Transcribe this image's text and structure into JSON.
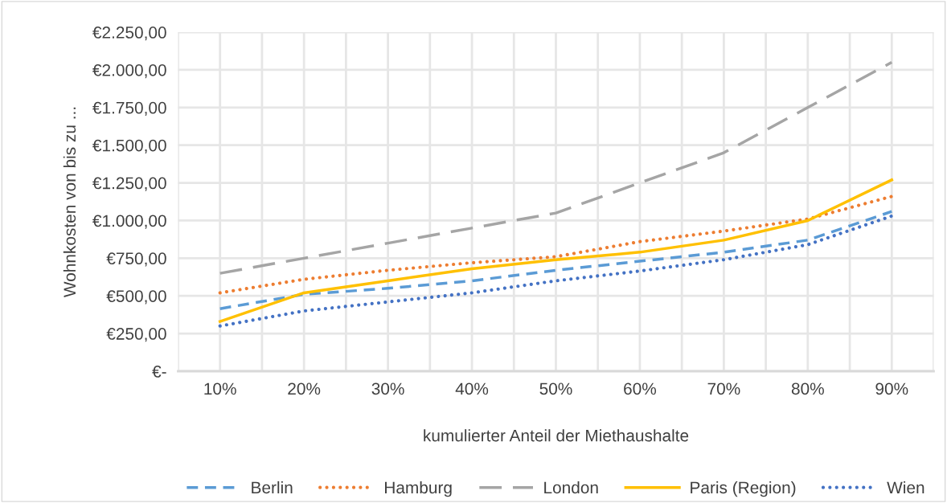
{
  "chart_data": {
    "type": "line",
    "xlabel": "kumulierter Anteil der Miethaushalte",
    "ylabel": "Wohnkosten von bis zu ...",
    "categories": [
      "10%",
      "20%",
      "30%",
      "40%",
      "50%",
      "60%",
      "70%",
      "80%",
      "90%"
    ],
    "series": [
      {
        "name": "Berlin",
        "color": "#5b9bd5",
        "line_style": "dashed",
        "values": [
          415,
          510,
          550,
          600,
          670,
          730,
          790,
          870,
          1060
        ]
      },
      {
        "name": "Hamburg",
        "color": "#ed7d31",
        "line_style": "dotted",
        "values": [
          520,
          610,
          670,
          720,
          760,
          860,
          930,
          1010,
          1160
        ]
      },
      {
        "name": "London",
        "color": "#a5a5a5",
        "line_style": "dashed",
        "values": [
          650,
          750,
          850,
          950,
          1050,
          1250,
          1450,
          1750,
          2050
        ]
      },
      {
        "name": "Paris (Region)",
        "color": "#ffc000",
        "line_style": "solid",
        "values": [
          330,
          520,
          600,
          680,
          740,
          790,
          870,
          1000,
          1270
        ]
      },
      {
        "name": "Wien",
        "color": "#4472c4",
        "line_style": "dotted",
        "values": [
          300,
          400,
          460,
          520,
          600,
          665,
          740,
          840,
          1030
        ]
      }
    ],
    "ylim": [
      0,
      2250
    ],
    "yticks": [
      {
        "value": 0,
        "label": "€-"
      },
      {
        "value": 250,
        "label": "€250,00"
      },
      {
        "value": 500,
        "label": "€500,00"
      },
      {
        "value": 750,
        "label": "€750,00"
      },
      {
        "value": 1000,
        "label": "€1.000,00"
      },
      {
        "value": 1250,
        "label": "€1.250,00"
      },
      {
        "value": 1500,
        "label": "€1.500,00"
      },
      {
        "value": 1750,
        "label": "€1.750,00"
      },
      {
        "value": 2000,
        "label": "€2.000,00"
      },
      {
        "value": 2250,
        "label": "€2.250,00"
      }
    ],
    "grid": true,
    "legend": "bottom",
    "marker": "none"
  }
}
